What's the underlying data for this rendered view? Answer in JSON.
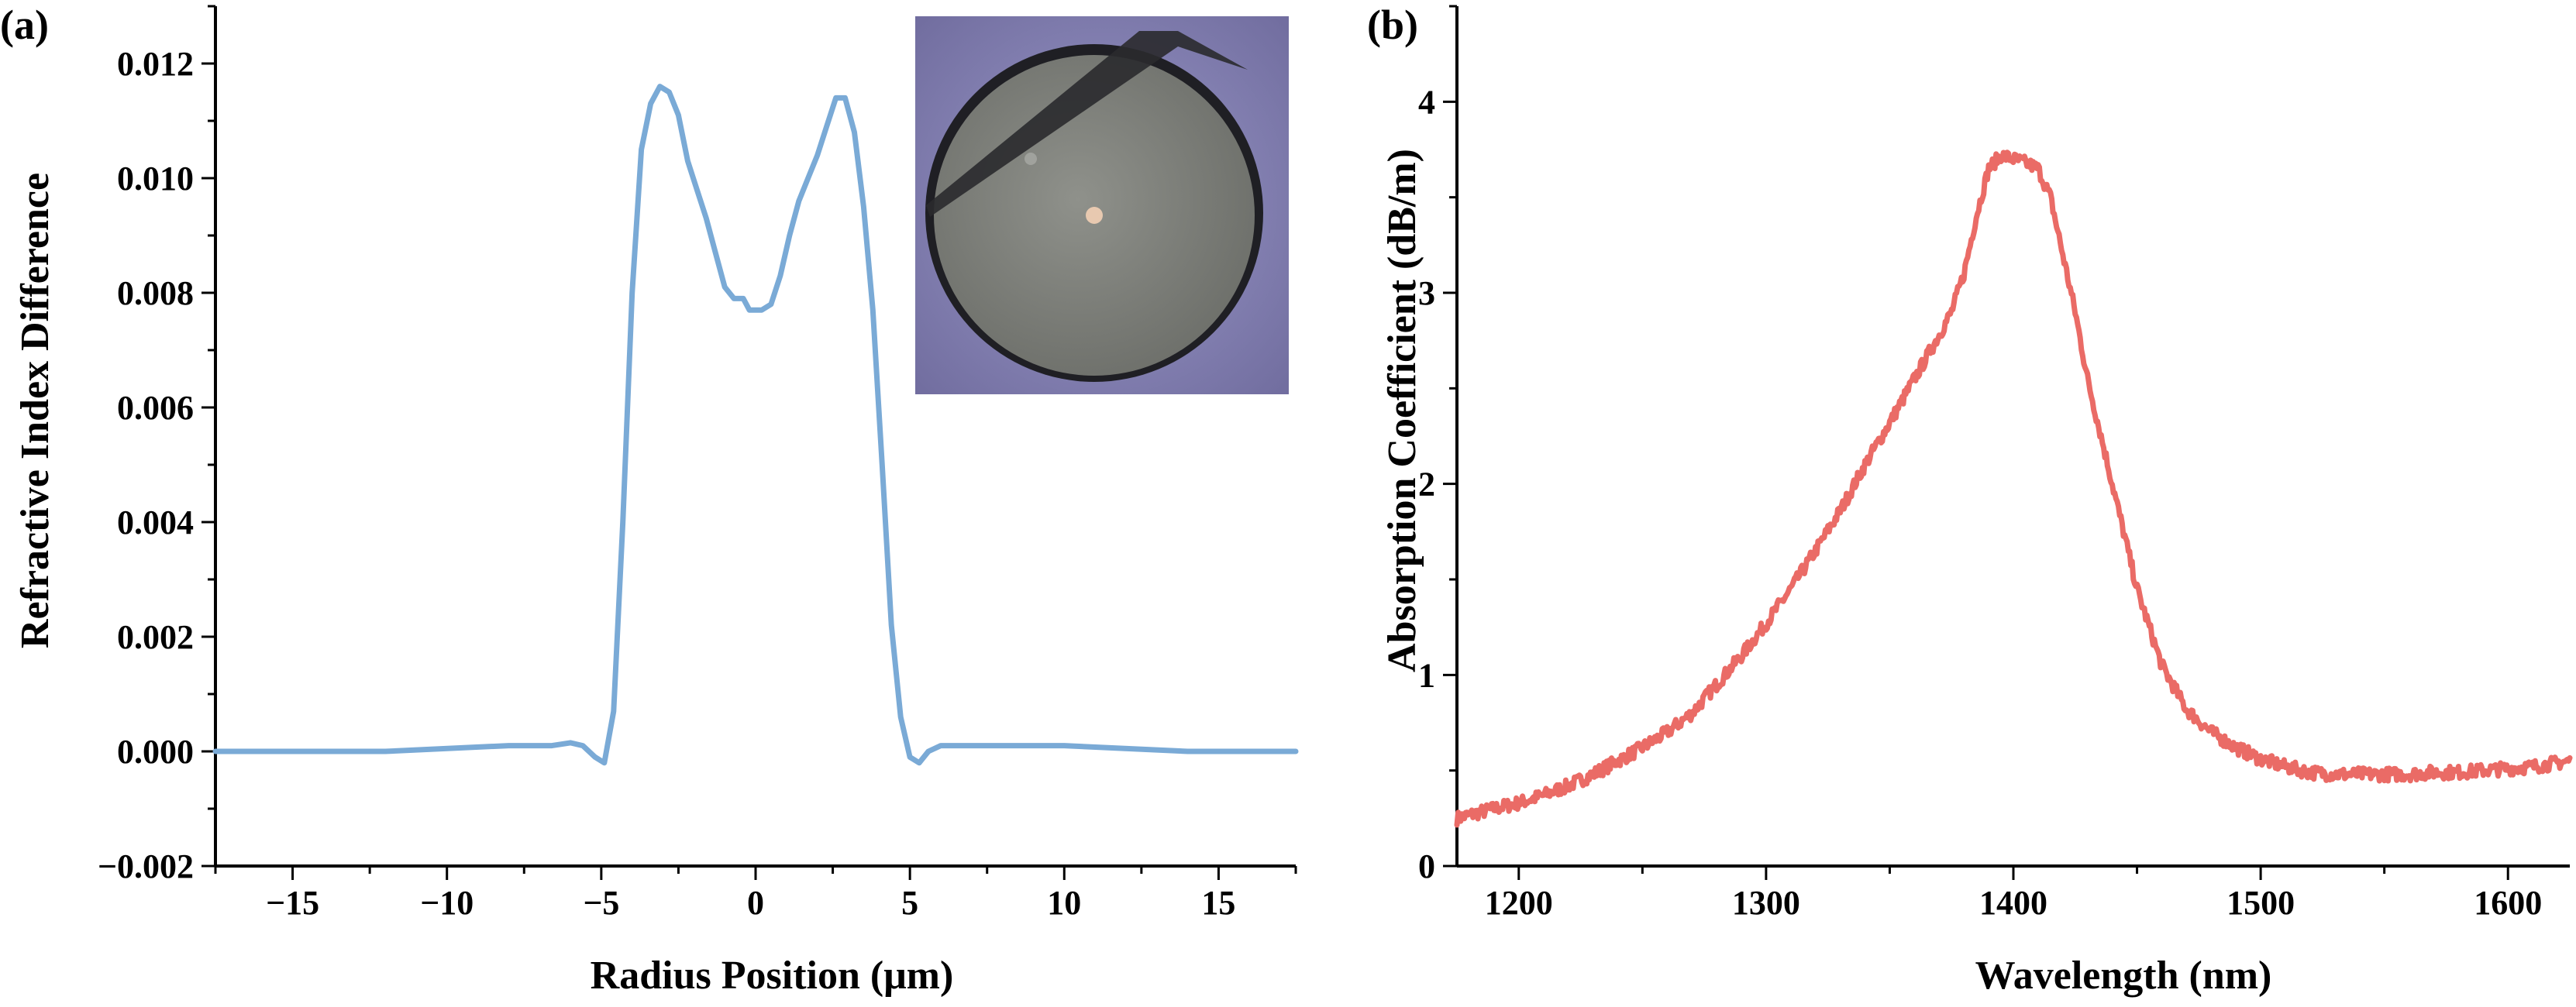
{
  "chart_data": [
    {
      "type": "line",
      "panel_label": "(a)",
      "xlabel": "Radius Position (μm)",
      "ylabel": "Refractive Index Difference",
      "xlim": [
        -17.5,
        17.5
      ],
      "ylim": [
        -0.002,
        0.013
      ],
      "xticks": [
        -15,
        -10,
        -5,
        0,
        5,
        10,
        15
      ],
      "xtick_labels": [
        "−15",
        "−10",
        "−5",
        "0",
        "5",
        "10",
        "15"
      ],
      "yticks": [
        -0.002,
        0,
        0.002,
        0.004,
        0.006,
        0.008,
        0.01,
        0.012
      ],
      "ytick_labels": [
        "−0.002",
        "0.000",
        "0.002",
        "0.004",
        "0.006",
        "0.008",
        "0.010",
        "0.012"
      ],
      "grid": false,
      "legend": "none",
      "inset": "fiber cross-section micrograph (top-right)",
      "series": [
        {
          "color": "#7aaad6",
          "x": [
            -17.5,
            -12,
            -8,
            -6.6,
            -6.0,
            -5.6,
            -5.2,
            -4.9,
            -4.6,
            -4.3,
            -4.0,
            -3.7,
            -3.4,
            -3.1,
            -2.8,
            -2.5,
            -2.2,
            -1.9,
            -1.6,
            -1.3,
            -1.0,
            -0.7,
            -0.4,
            -0.2,
            0.0,
            0.2,
            0.5,
            0.8,
            1.1,
            1.4,
            1.7,
            2.0,
            2.3,
            2.6,
            2.9,
            3.2,
            3.5,
            3.8,
            4.1,
            4.4,
            4.7,
            5.0,
            5.3,
            5.6,
            6.0,
            7.0,
            10,
            14,
            17.5
          ],
          "y": [
            0.0,
            0.0,
            0.0001,
            0.0001,
            0.00015,
            0.0001,
            -0.0001,
            -0.0002,
            0.0007,
            0.004,
            0.008,
            0.0105,
            0.0113,
            0.0116,
            0.0115,
            0.0111,
            0.0103,
            0.0098,
            0.0093,
            0.0087,
            0.0081,
            0.0079,
            0.0079,
            0.0077,
            0.0077,
            0.0077,
            0.0078,
            0.0083,
            0.009,
            0.0096,
            0.01,
            0.0104,
            0.0109,
            0.0114,
            0.0114,
            0.0108,
            0.0095,
            0.0077,
            0.005,
            0.0022,
            0.0006,
            -0.0001,
            -0.0002,
            0.0,
            0.0001,
            0.0001,
            0.0001,
            0.0,
            0.0
          ]
        }
      ]
    },
    {
      "type": "line",
      "panel_label": "(b)",
      "xlabel": "Wavelength (nm)",
      "ylabel": "Absorption Coefficient (dB/m)",
      "xlim": [
        1175,
        1625
      ],
      "ylim": [
        0,
        4.5
      ],
      "xticks": [
        1200,
        1300,
        1400,
        1500,
        1600
      ],
      "xtick_labels": [
        "1200",
        "1300",
        "1400",
        "1500",
        "1600"
      ],
      "yticks": [
        0,
        1,
        2,
        3,
        4
      ],
      "ytick_labels": [
        "0",
        "1",
        "2",
        "3",
        "4"
      ],
      "grid": false,
      "legend": "none",
      "series": [
        {
          "color": "#ea6b66",
          "x": [
            1175,
            1190,
            1200,
            1210,
            1220,
            1230,
            1240,
            1250,
            1260,
            1270,
            1280,
            1290,
            1300,
            1310,
            1320,
            1330,
            1340,
            1350,
            1360,
            1370,
            1375,
            1380,
            1385,
            1390,
            1395,
            1400,
            1405,
            1410,
            1415,
            1420,
            1425,
            1430,
            1440,
            1450,
            1460,
            1470,
            1480,
            1490,
            1500,
            1510,
            1520,
            1530,
            1540,
            1550,
            1560,
            1570,
            1580,
            1590,
            1600,
            1610,
            1625
          ],
          "y": [
            0.25,
            0.3,
            0.33,
            0.37,
            0.42,
            0.48,
            0.55,
            0.62,
            0.7,
            0.8,
            0.95,
            1.1,
            1.27,
            1.45,
            1.65,
            1.86,
            2.1,
            2.32,
            2.55,
            2.78,
            2.9,
            3.1,
            3.4,
            3.65,
            3.72,
            3.7,
            3.68,
            3.65,
            3.5,
            3.2,
            2.9,
            2.55,
            2.0,
            1.45,
            1.05,
            0.82,
            0.7,
            0.62,
            0.56,
            0.52,
            0.49,
            0.48,
            0.48,
            0.48,
            0.48,
            0.49,
            0.49,
            0.5,
            0.51,
            0.52,
            0.55
          ]
        }
      ]
    }
  ]
}
